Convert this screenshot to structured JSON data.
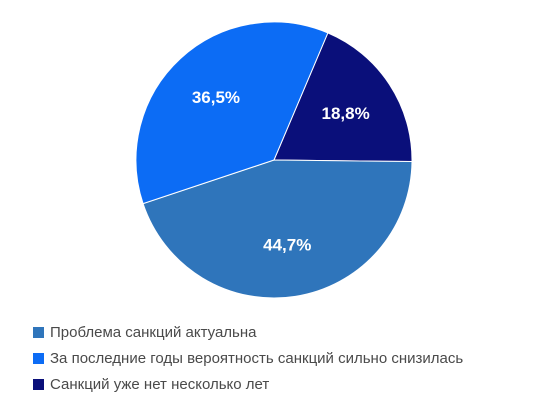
{
  "chart_data": {
    "type": "pie",
    "slices": [
      {
        "label": "Проблема санкций актуальна",
        "value": 44.7,
        "display": "44,7%",
        "color": "#2f75bb"
      },
      {
        "label": "За последние годы вероятность санкций сильно снизилась",
        "value": 36.5,
        "display": "36,5%",
        "color": "#0c6cf5"
      },
      {
        "label": "Санкций уже нет несколько лет",
        "value": 18.8,
        "display": "18,8%",
        "color": "#0a0f7a"
      }
    ],
    "legend_position": "bottom-left",
    "title": ""
  }
}
